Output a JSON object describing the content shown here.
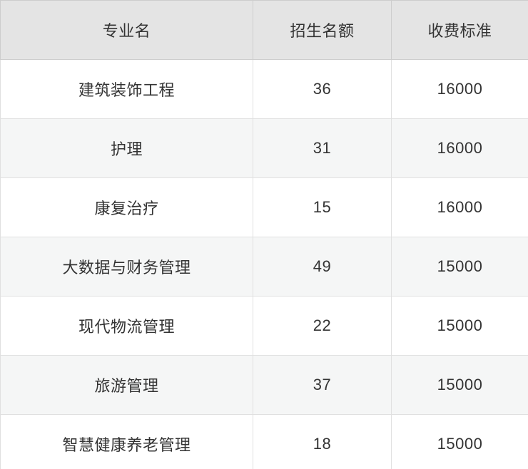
{
  "chart_data": {
    "type": "table",
    "columns": [
      "专业名",
      "招生名额",
      "收费标准"
    ],
    "rows": [
      [
        "建筑装饰工程",
        36,
        16000
      ],
      [
        "护理",
        31,
        16000
      ],
      [
        "康复治疗",
        15,
        16000
      ],
      [
        "大数据与财务管理",
        49,
        15000
      ],
      [
        "现代物流管理",
        22,
        15000
      ],
      [
        "旅游管理",
        37,
        15000
      ],
      [
        "智慧健康养老管理",
        18,
        15000
      ]
    ],
    "layout": {
      "header_shaded": true,
      "zebra_striping": "even-body-rows-shaded",
      "cell_alignment": "center",
      "grid_lines": true
    }
  },
  "colors": {
    "header_bg": "#e4e4e4",
    "row_bg": "#ffffff",
    "row_alt_bg": "#f5f6f6",
    "header_border": "#cdcdcd",
    "body_border": "#e0e0e0",
    "text_color": "#333333"
  }
}
